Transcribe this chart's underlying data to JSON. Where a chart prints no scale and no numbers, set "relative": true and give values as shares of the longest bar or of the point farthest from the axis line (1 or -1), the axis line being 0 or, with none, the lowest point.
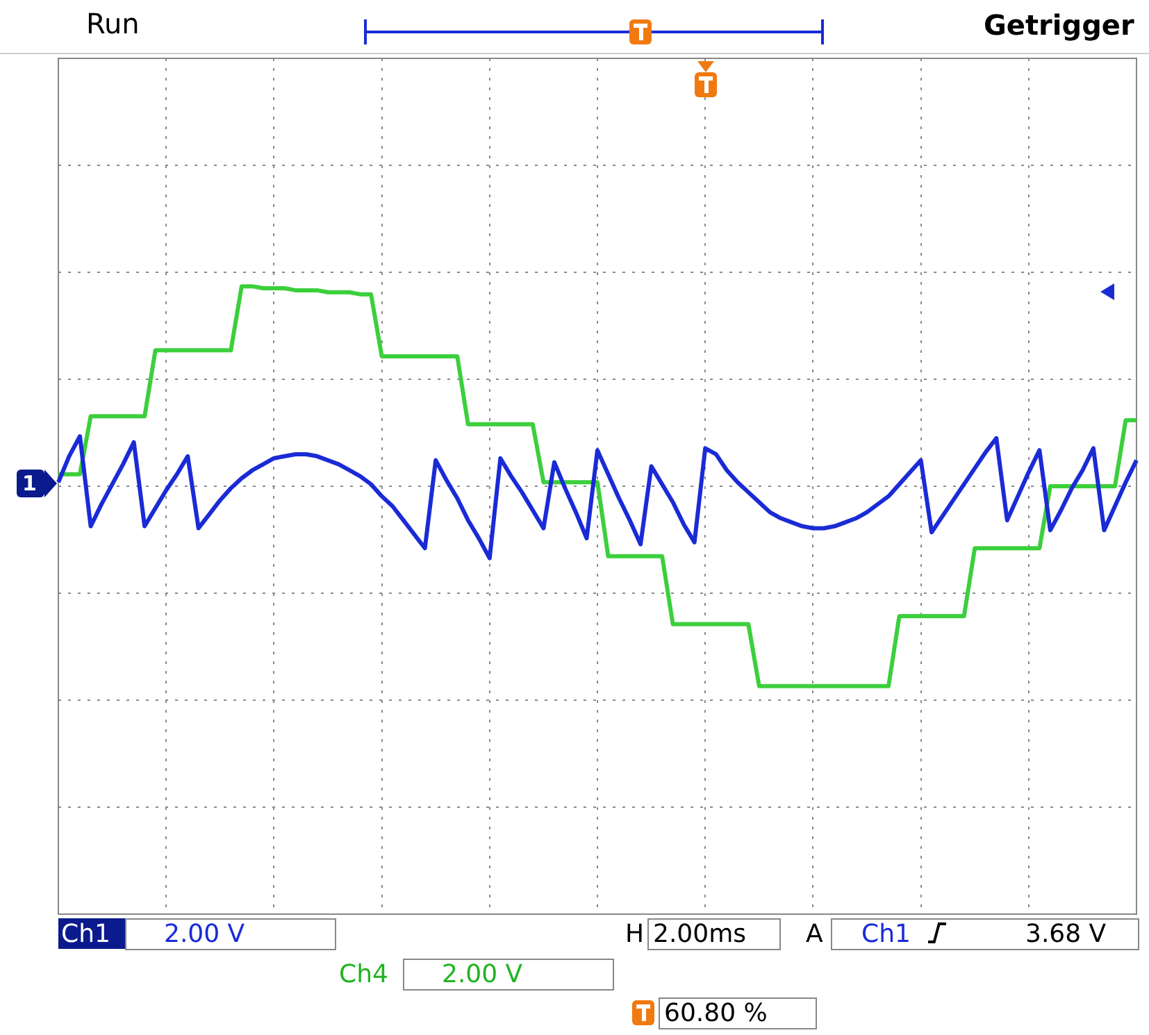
{
  "chart_data": {
    "type": "line",
    "relative": true,
    "grid": true,
    "marker": "none",
    "line_style": "solid",
    "categories": [
      null,
      null,
      null,
      null,
      null,
      null,
      null,
      null,
      null,
      null,
      null,
      null,
      null,
      null,
      null,
      null,
      null,
      null,
      null,
      null,
      null,
      null,
      null,
      null,
      null,
      null,
      null,
      null,
      null,
      null,
      null,
      null,
      null,
      null,
      null,
      null,
      null,
      null,
      null,
      null,
      null,
      null,
      null,
      null,
      null,
      null,
      null,
      null,
      null,
      null,
      null,
      null,
      null,
      null,
      null,
      null,
      null,
      null,
      null,
      null,
      null,
      null,
      null,
      null,
      null,
      null,
      null,
      null,
      null,
      null,
      null,
      null,
      null,
      null,
      null,
      null,
      null,
      null,
      null,
      null,
      null,
      null,
      null,
      null,
      null,
      null,
      null,
      null,
      null,
      null,
      null,
      null,
      null,
      null,
      null,
      null,
      null,
      null,
      null,
      null,
      null
    ],
    "series": [
      {
        "color": "#1a2bd6",
        "values": [
          0.02,
          0.15,
          0.25,
          -0.2,
          -0.09,
          0.01,
          0.11,
          0.22,
          -0.2,
          -0.11,
          -0.02,
          0.06,
          0.15,
          -0.21,
          -0.14,
          -0.07,
          -0.01,
          0.04,
          0.08,
          0.11,
          0.14,
          0.15,
          0.16,
          0.16,
          0.15,
          0.13,
          0.11,
          0.08,
          0.05,
          0.01,
          -0.05,
          -0.1,
          -0.17,
          -0.24,
          -0.31,
          0.13,
          0.03,
          -0.06,
          -0.17,
          -0.26,
          -0.36,
          0.14,
          0.05,
          -0.03,
          -0.12,
          -0.21,
          0.12,
          -0.01,
          -0.13,
          -0.26,
          0.18,
          0.06,
          -0.06,
          -0.17,
          -0.29,
          0.1,
          0.01,
          -0.08,
          -0.19,
          -0.28,
          0.19,
          0.16,
          0.08,
          0.02,
          -0.03,
          -0.08,
          -0.13,
          -0.16,
          -0.18,
          -0.2,
          -0.21,
          -0.21,
          -0.2,
          -0.18,
          -0.16,
          -0.13,
          -0.09,
          -0.05,
          0.01,
          0.07,
          0.13,
          -0.23,
          -0.15,
          -0.07,
          0.01,
          0.09,
          0.17,
          0.24,
          -0.17,
          -0.05,
          0.07,
          0.18,
          -0.22,
          -0.12,
          -0.01,
          0.08,
          0.19,
          -0.22,
          -0.1,
          0.02,
          0.13
        ]
      },
      {
        "color": "#3ccf3c",
        "values": [
          0.06,
          0.06,
          0.06,
          0.35,
          0.35,
          0.35,
          0.35,
          0.35,
          0.35,
          0.68,
          0.68,
          0.68,
          0.68,
          0.68,
          0.68,
          0.68,
          0.68,
          1.0,
          1.0,
          0.99,
          0.99,
          0.99,
          0.98,
          0.98,
          0.98,
          0.97,
          0.97,
          0.97,
          0.96,
          0.96,
          0.65,
          0.65,
          0.65,
          0.65,
          0.65,
          0.65,
          0.65,
          0.65,
          0.31,
          0.31,
          0.31,
          0.31,
          0.31,
          0.31,
          0.31,
          0.02,
          0.02,
          0.02,
          0.02,
          0.02,
          0.02,
          -0.35,
          -0.35,
          -0.35,
          -0.35,
          -0.35,
          -0.35,
          -0.69,
          -0.69,
          -0.69,
          -0.69,
          -0.69,
          -0.69,
          -0.69,
          -0.69,
          -1.0,
          -1.0,
          -1.0,
          -1.0,
          -1.0,
          -1.0,
          -1.0,
          -1.0,
          -1.0,
          -1.0,
          -1.0,
          -1.0,
          -1.0,
          -0.65,
          -0.65,
          -0.65,
          -0.65,
          -0.65,
          -0.65,
          -0.65,
          -0.31,
          -0.31,
          -0.31,
          -0.31,
          -0.31,
          -0.31,
          -0.31,
          0,
          0,
          0,
          0,
          0,
          0,
          0,
          0.33,
          0.33
        ]
      }
    ],
    "annotations": [
      "Run",
      "Getrigger",
      "1",
      "Ch1",
      "2.00 V",
      "Ch4",
      "2.00 V",
      "H",
      "2.00ms",
      "A",
      "Ch1",
      "3.68 V",
      "60.80 %"
    ]
  }
}
